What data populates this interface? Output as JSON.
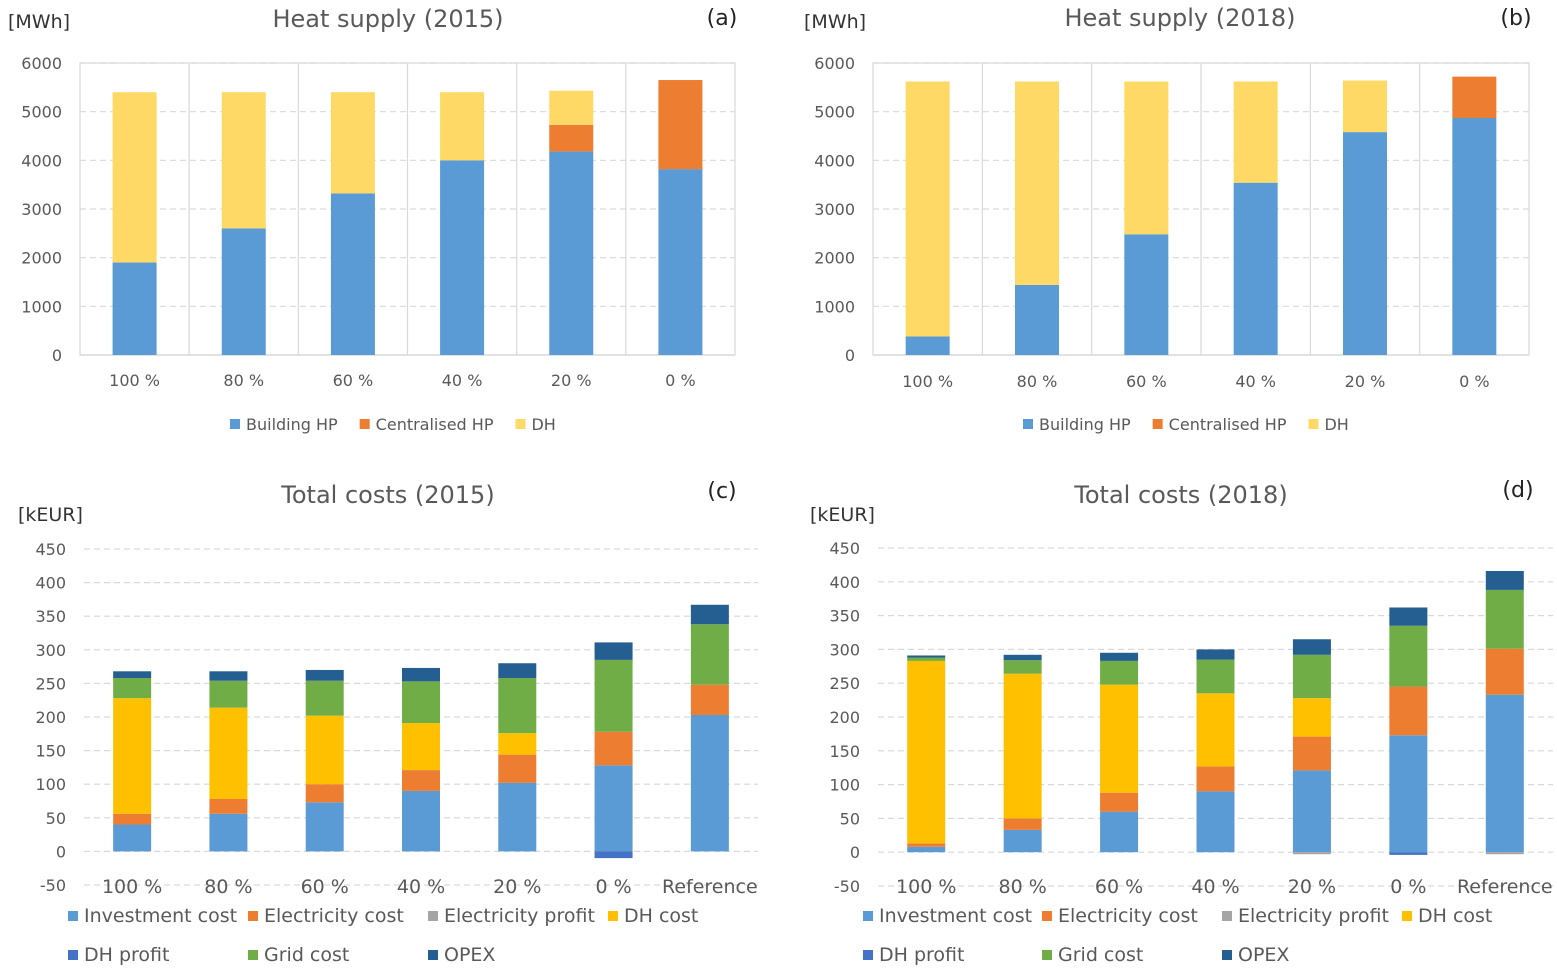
{
  "chart_data": [
    {
      "type": "bar",
      "stacked": true,
      "title": "Heat supply (2015)",
      "panel_label": "(a)",
      "ylabel": "[MWh]",
      "ylim": [
        0,
        6000
      ],
      "yticks": [
        0,
        1000,
        2000,
        3000,
        4000,
        5000,
        6000
      ],
      "grid": "horizontal dashed",
      "legend_position": "bottom",
      "categories": [
        "100 %",
        "80 %",
        "60 %",
        "40 %",
        "20 %",
        "0 %"
      ],
      "series": [
        {
          "name": "Building HP",
          "color": "#5b9bd5",
          "values": [
            1900,
            2600,
            3320,
            4000,
            4180,
            3820
          ]
        },
        {
          "name": "Centralised HP",
          "color": "#ed7d31",
          "values": [
            0,
            0,
            0,
            0,
            550,
            1830
          ]
        },
        {
          "name": "DH",
          "color": "#ffd966",
          "values": [
            3500,
            2800,
            2080,
            1400,
            700,
            0
          ]
        }
      ]
    },
    {
      "type": "bar",
      "stacked": true,
      "title": "Heat supply (2018)",
      "panel_label": "(b)",
      "ylabel": "[MWh]",
      "ylim": [
        0,
        6000
      ],
      "yticks": [
        0,
        1000,
        2000,
        3000,
        4000,
        5000,
        6000
      ],
      "grid": "horizontal dashed",
      "legend_position": "bottom",
      "categories": [
        "100 %",
        "80 %",
        "60 %",
        "40 %",
        "20 %",
        "0 %"
      ],
      "series": [
        {
          "name": "Building HP",
          "color": "#5b9bd5",
          "values": [
            380,
            1440,
            2480,
            3540,
            4580,
            4870
          ]
        },
        {
          "name": "Centralised HP",
          "color": "#ed7d31",
          "values": [
            0,
            0,
            0,
            0,
            0,
            850
          ]
        },
        {
          "name": "DH",
          "color": "#ffd966",
          "values": [
            5240,
            4180,
            3140,
            2080,
            1060,
            0
          ]
        }
      ]
    },
    {
      "type": "bar",
      "stacked": true,
      "title": "Total costs (2015)",
      "panel_label": "(c)",
      "ylabel": "[kEUR]",
      "ylim": [
        -50,
        450
      ],
      "yticks": [
        -50,
        0,
        50,
        100,
        150,
        200,
        250,
        300,
        350,
        400,
        450
      ],
      "grid": "horizontal dashed",
      "legend_position": "bottom",
      "categories": [
        "100 %",
        "80 %",
        "60 %",
        "40 %",
        "20 %",
        "0 %",
        "Reference"
      ],
      "series": [
        {
          "name": "Investment cost",
          "color": "#5b9bd5",
          "values": [
            40,
            56,
            73,
            90,
            102,
            128,
            203
          ]
        },
        {
          "name": "Electricity cost",
          "color": "#ed7d31",
          "values": [
            16,
            22,
            27,
            31,
            42,
            50,
            45
          ]
        },
        {
          "name": "Electricity profit",
          "color": "#a5a5a5",
          "values": [
            0,
            0,
            0,
            0,
            0,
            0,
            0
          ]
        },
        {
          "name": "DH cost",
          "color": "#ffc000",
          "values": [
            172,
            136,
            102,
            70,
            32,
            0,
            0
          ]
        },
        {
          "name": "DH profit",
          "color": "#4472c4",
          "values": [
            0,
            0,
            0,
            0,
            0,
            -10,
            0
          ]
        },
        {
          "name": "Grid cost",
          "color": "#70ad47",
          "values": [
            30,
            40,
            52,
            62,
            82,
            107,
            90
          ]
        },
        {
          "name": "OPEX",
          "color": "#255e91",
          "values": [
            10,
            14,
            16,
            20,
            22,
            26,
            29
          ]
        }
      ]
    },
    {
      "type": "bar",
      "stacked": true,
      "title": "Total costs (2018)",
      "panel_label": "(d)",
      "ylabel": "[kEUR]",
      "ylim": [
        -50,
        450
      ],
      "yticks": [
        -50,
        0,
        50,
        100,
        150,
        200,
        250,
        300,
        350,
        400,
        450
      ],
      "grid": "horizontal dashed",
      "legend_position": "bottom",
      "categories": [
        "100 %",
        "80 %",
        "60 %",
        "40 %",
        "20 %",
        "0 %",
        "Reference"
      ],
      "series": [
        {
          "name": "Investment cost",
          "color": "#5b9bd5",
          "values": [
            8,
            33,
            60,
            90,
            121,
            173,
            233
          ]
        },
        {
          "name": "Electricity cost",
          "color": "#ed7d31",
          "values": [
            5,
            17,
            28,
            37,
            50,
            72,
            68
          ]
        },
        {
          "name": "Electricity profit",
          "color": "#a5a5a5",
          "values": [
            0,
            0,
            0,
            0,
            -3,
            0,
            -3
          ]
        },
        {
          "name": "DH cost",
          "color": "#ffc000",
          "values": [
            270,
            214,
            160,
            108,
            57,
            0,
            0
          ]
        },
        {
          "name": "DH profit",
          "color": "#4472c4",
          "values": [
            0,
            0,
            0,
            0,
            0,
            -4,
            0
          ]
        },
        {
          "name": "Grid cost",
          "color": "#70ad47",
          "values": [
            5,
            20,
            35,
            50,
            64,
            90,
            87
          ]
        },
        {
          "name": "OPEX",
          "color": "#255e91",
          "values": [
            3,
            8,
            12,
            15,
            23,
            27,
            28
          ]
        }
      ]
    }
  ]
}
